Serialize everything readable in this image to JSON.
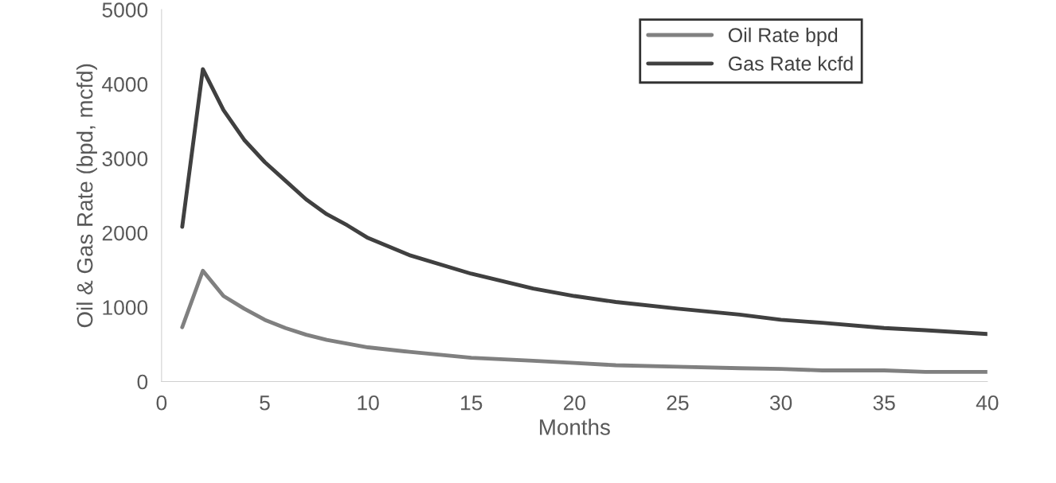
{
  "chart_data": {
    "type": "line",
    "xlabel": "Months",
    "ylabel": "Oil & Gas Rate (bpd, mcfd)",
    "xlim": [
      0,
      40
    ],
    "xticks": [
      0,
      5,
      10,
      15,
      20,
      25,
      30,
      35,
      40
    ],
    "ylim": [
      0,
      5000
    ],
    "yticks": [
      0,
      1000,
      2000,
      3000,
      4000,
      5000
    ],
    "grid": false,
    "legend": "top right",
    "marker": "none",
    "line_style": "solid",
    "series": [
      {
        "name": "Oil Rate bpd",
        "color": "#808080",
        "x": [
          1,
          2,
          3,
          4,
          5,
          6,
          7,
          8,
          10,
          12,
          15,
          18,
          20,
          22,
          25,
          28,
          30,
          32,
          35,
          37,
          40
        ],
        "values": [
          730,
          1490,
          1150,
          980,
          830,
          720,
          630,
          560,
          460,
          400,
          320,
          280,
          250,
          220,
          200,
          180,
          170,
          150,
          150,
          130,
          130
        ]
      },
      {
        "name": "Gas Rate kcfd",
        "color": "#404040",
        "x": [
          1,
          2,
          3,
          4,
          5,
          6,
          7,
          8,
          9,
          10,
          12,
          15,
          18,
          20,
          22,
          25,
          28,
          30,
          32,
          35,
          37,
          40
        ],
        "values": [
          2080,
          4200,
          3650,
          3250,
          2950,
          2700,
          2450,
          2250,
          2100,
          1930,
          1700,
          1450,
          1250,
          1150,
          1070,
          980,
          900,
          830,
          790,
          720,
          690,
          640
        ]
      }
    ]
  }
}
